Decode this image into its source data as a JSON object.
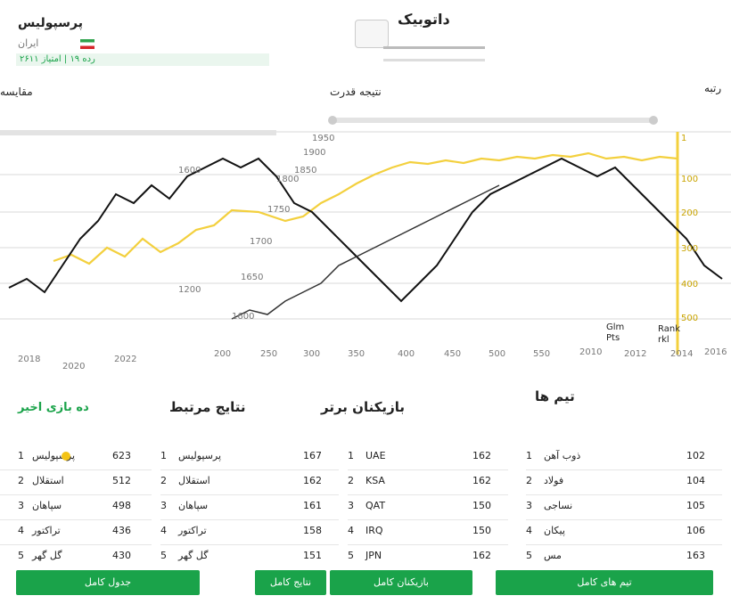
{
  "header": {
    "right_title": "داتوبیک",
    "left_title": "پرسپولیس",
    "left_subtitle": "ایران",
    "stats_line": "رده ۱۹ | امتیاز ۲۶۱۱"
  },
  "chart_left": {
    "title": "مقایسه",
    "xticks": [
      "2018",
      "2020",
      "2022"
    ],
    "yticks": [
      "1200",
      "1600"
    ]
  },
  "chart_center": {
    "title": "نتیجه قدرت",
    "xticks": [
      "200",
      "250",
      "300",
      "350",
      "400",
      "450",
      "500",
      "550"
    ],
    "yticks": [
      "1600",
      "1650",
      "1700",
      "1750",
      "1800",
      "1850",
      "1900",
      "1950"
    ]
  },
  "chart_right": {
    "title": "رتبه",
    "labels": [
      "Glm",
      "Pts",
      "Rank",
      "rkl"
    ],
    "xticks": [
      "2010",
      "2012",
      "2014",
      "2016"
    ],
    "yticks": [
      "1",
      "100",
      "200",
      "300",
      "400",
      "500"
    ]
  },
  "sections": {
    "s1": "ده بازی اخیر",
    "s2": "نتایج مرتبط",
    "s3": "بازیکنان برتر",
    "s4": "تیم ها"
  },
  "table1": {
    "rows": [
      {
        "rank": "1",
        "team": "پرسپولیس",
        "score": "623"
      },
      {
        "rank": "2",
        "team": "استقلال",
        "score": "512"
      },
      {
        "rank": "3",
        "team": "سپاهان",
        "score": "498"
      },
      {
        "rank": "4",
        "team": "تراکتور",
        "score": "436"
      },
      {
        "rank": "5",
        "team": "گل گهر",
        "score": "430"
      }
    ]
  },
  "table2": {
    "rows": [
      {
        "rank": "1",
        "team": "پرسپولیس",
        "score": "167"
      },
      {
        "rank": "2",
        "team": "استقلال",
        "score": "162"
      },
      {
        "rank": "3",
        "team": "سپاهان",
        "score": "161"
      },
      {
        "rank": "4",
        "team": "تراکتور",
        "score": "158"
      },
      {
        "rank": "5",
        "team": "گل گهر",
        "score": "151"
      }
    ]
  },
  "table3": {
    "rows": [
      {
        "rank": "1",
        "team": "UAE",
        "score": "162"
      },
      {
        "rank": "2",
        "team": "KSA",
        "score": "162"
      },
      {
        "rank": "3",
        "team": "QAT",
        "score": "150"
      },
      {
        "rank": "4",
        "team": "IRQ",
        "score": "150"
      },
      {
        "rank": "5",
        "team": "JPN",
        "score": "162"
      }
    ]
  },
  "table4": {
    "rows": [
      {
        "rank": "1",
        "team": "ذوب آهن",
        "score": "102"
      },
      {
        "rank": "2",
        "team": "فولاد",
        "score": "104"
      },
      {
        "rank": "3",
        "team": "نساجی",
        "score": "105"
      },
      {
        "rank": "4",
        "team": "پیکان",
        "score": "106"
      },
      {
        "rank": "5",
        "team": "مس",
        "score": "163"
      }
    ]
  },
  "footer": {
    "b1": "جدول کامل",
    "b2": "نتایج کامل",
    "b3": "بازیکنان کامل",
    "b4": "تیم های کامل"
  },
  "colors": {
    "accent": "#1aa34a",
    "series_gold": "#f3d03e",
    "series_dark": "#111111"
  }
}
